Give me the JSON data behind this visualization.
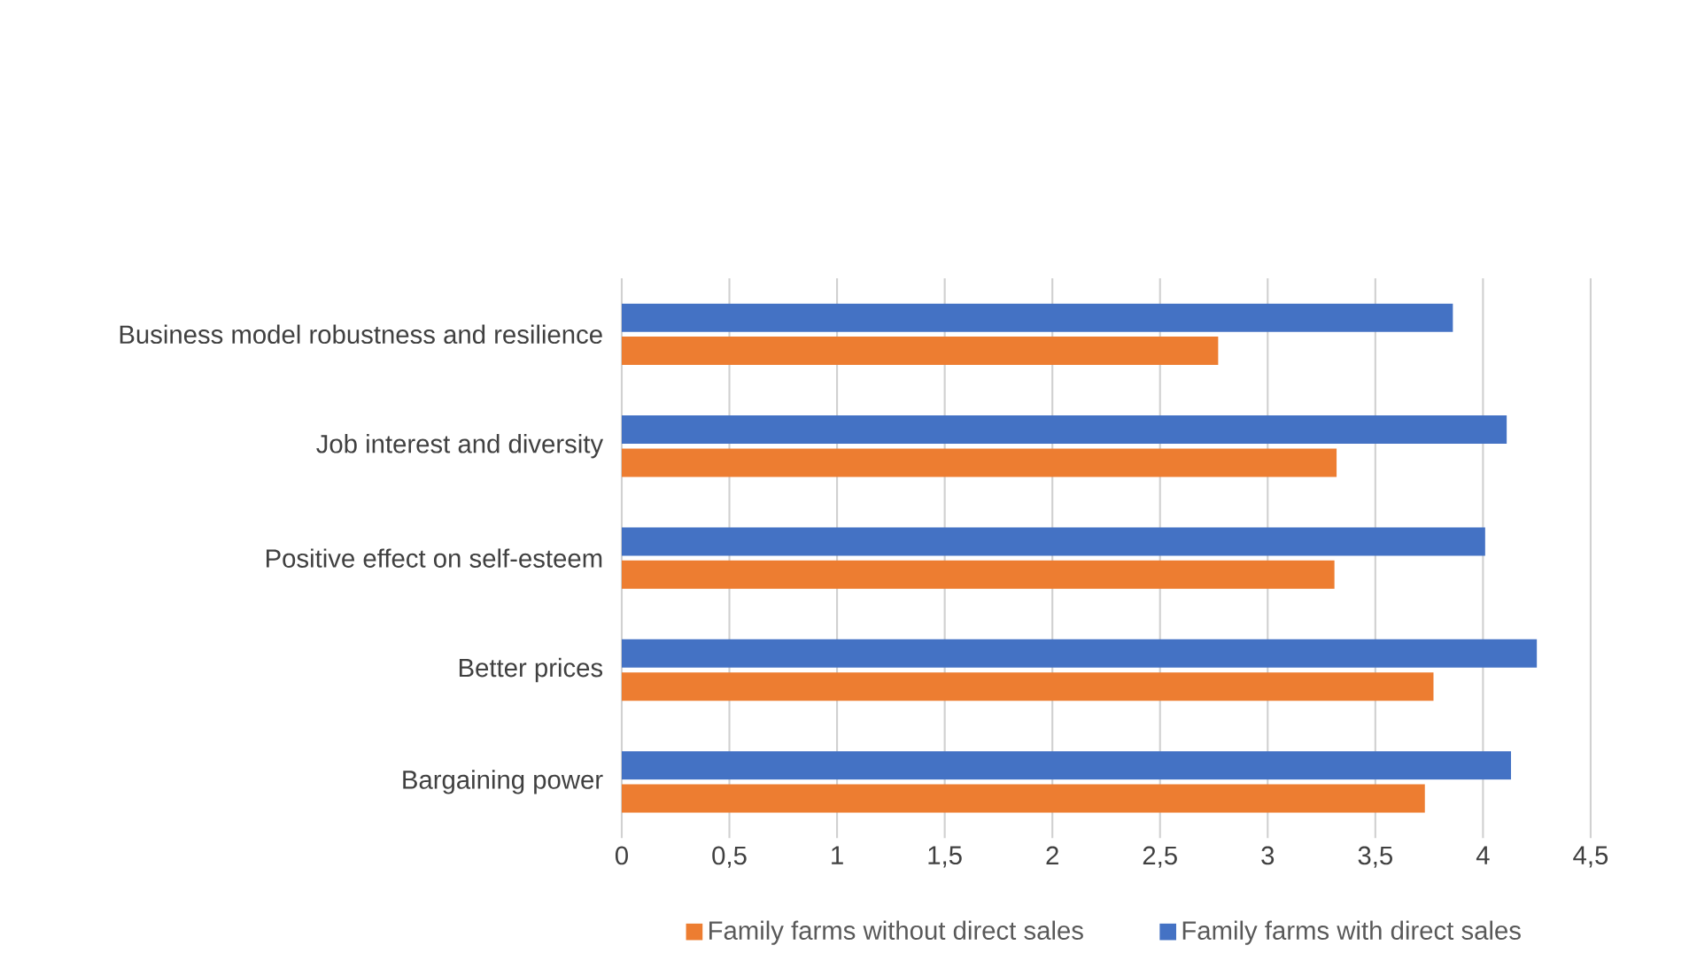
{
  "chart_data": {
    "type": "bar",
    "orientation": "horizontal",
    "categories": [
      "Business model robustness and resilience",
      "Job interest and diversity",
      "Positive effect on self-esteem",
      "Better prices",
      "Bargaining power"
    ],
    "series": [
      {
        "name": "Family farms without direct sales",
        "color": "#ed7d31",
        "values": [
          2.77,
          3.32,
          3.31,
          3.77,
          3.73
        ]
      },
      {
        "name": "Family farms with direct sales",
        "color": "#4472c4",
        "values": [
          3.86,
          4.11,
          4.01,
          4.25,
          4.13
        ]
      }
    ],
    "xlim": [
      0,
      4.5
    ],
    "xticks": [
      0,
      {
        "value": 0.5,
        "label": "0,5"
      },
      1,
      {
        "value": 1.5,
        "label": "1,5"
      },
      2,
      {
        "value": 2.5,
        "label": "2,5"
      },
      3,
      {
        "value": 3.5,
        "label": "3,5"
      },
      4,
      {
        "value": 4.5,
        "label": "4,5"
      }
    ],
    "grid": "x",
    "legend": "bottom"
  }
}
